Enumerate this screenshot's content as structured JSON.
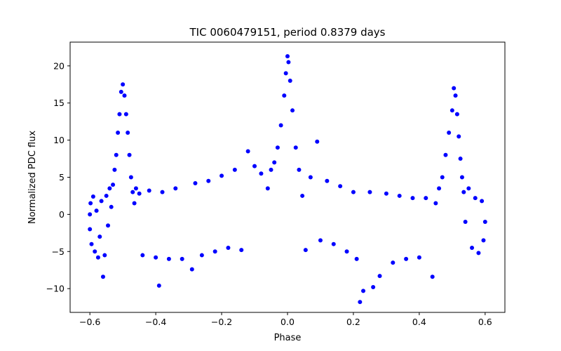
{
  "chart_data": {
    "type": "scatter",
    "title": "TIC 0060479151, period 0.8379 days",
    "xlabel": "Phase",
    "ylabel": "Normalized PDC flux",
    "xlim": [
      -0.66,
      0.66
    ],
    "ylim": [
      -13.2,
      23.2
    ],
    "grid": false,
    "legend": "none",
    "color": "#0000ff",
    "marker": "filled-circle",
    "x_ticks": [
      -0.6,
      -0.4,
      -0.2,
      0.0,
      0.2,
      0.4,
      0.6
    ],
    "x_tick_labels": [
      "−0.6",
      "−0.4",
      "−0.2",
      "0.0",
      "0.2",
      "0.4",
      "0.6"
    ],
    "y_ticks": [
      -10,
      -5,
      0,
      5,
      10,
      15,
      20
    ],
    "y_tick_labels": [
      "−10",
      "−5",
      "0",
      "5",
      "10",
      "15",
      "20"
    ],
    "points": [
      [
        -0.6,
        -2.0
      ],
      [
        -0.6,
        0.0
      ],
      [
        -0.598,
        1.5
      ],
      [
        -0.595,
        -4.0
      ],
      [
        -0.59,
        2.4
      ],
      [
        -0.585,
        -5.0
      ],
      [
        -0.58,
        0.5
      ],
      [
        -0.575,
        -5.8
      ],
      [
        -0.57,
        -3.0
      ],
      [
        -0.565,
        1.8
      ],
      [
        -0.56,
        -8.4
      ],
      [
        -0.555,
        -5.5
      ],
      [
        -0.55,
        2.5
      ],
      [
        -0.545,
        -1.5
      ],
      [
        -0.54,
        3.5
      ],
      [
        -0.535,
        1.0
      ],
      [
        -0.53,
        4.0
      ],
      [
        -0.525,
        6.0
      ],
      [
        -0.52,
        8.0
      ],
      [
        -0.515,
        11.0
      ],
      [
        -0.51,
        13.5
      ],
      [
        -0.505,
        16.5
      ],
      [
        -0.5,
        17.5
      ],
      [
        -0.495,
        16.0
      ],
      [
        -0.49,
        13.5
      ],
      [
        -0.485,
        11.0
      ],
      [
        -0.48,
        8.0
      ],
      [
        -0.475,
        5.0
      ],
      [
        -0.47,
        3.0
      ],
      [
        -0.465,
        1.5
      ],
      [
        -0.46,
        3.5
      ],
      [
        -0.45,
        2.8
      ],
      [
        -0.44,
        -5.5
      ],
      [
        -0.42,
        3.2
      ],
      [
        -0.4,
        -5.8
      ],
      [
        -0.39,
        -9.6
      ],
      [
        -0.38,
        3.0
      ],
      [
        -0.36,
        -6.0
      ],
      [
        -0.34,
        3.5
      ],
      [
        -0.32,
        -6.0
      ],
      [
        -0.29,
        -7.4
      ],
      [
        -0.28,
        4.2
      ],
      [
        -0.26,
        -5.5
      ],
      [
        -0.24,
        4.5
      ],
      [
        -0.22,
        -5.0
      ],
      [
        -0.2,
        5.2
      ],
      [
        -0.18,
        -4.5
      ],
      [
        -0.16,
        6.0
      ],
      [
        -0.14,
        -4.8
      ],
      [
        -0.12,
        8.5
      ],
      [
        -0.1,
        6.5
      ],
      [
        -0.08,
        5.5
      ],
      [
        -0.06,
        3.5
      ],
      [
        -0.05,
        6.0
      ],
      [
        -0.04,
        7.0
      ],
      [
        -0.03,
        9.0
      ],
      [
        -0.02,
        12.0
      ],
      [
        -0.01,
        16.0
      ],
      [
        -0.005,
        19.0
      ],
      [
        0.0,
        21.3
      ],
      [
        0.003,
        20.5
      ],
      [
        0.008,
        18.0
      ],
      [
        0.015,
        14.0
      ],
      [
        0.025,
        9.0
      ],
      [
        0.035,
        6.0
      ],
      [
        0.045,
        2.5
      ],
      [
        0.055,
        -4.8
      ],
      [
        0.07,
        5.0
      ],
      [
        0.09,
        9.8
      ],
      [
        0.1,
        -3.5
      ],
      [
        0.12,
        4.5
      ],
      [
        0.14,
        -4.0
      ],
      [
        0.16,
        3.8
      ],
      [
        0.18,
        -5.0
      ],
      [
        0.2,
        3.0
      ],
      [
        0.21,
        -6.0
      ],
      [
        0.22,
        -11.8
      ],
      [
        0.23,
        -10.3
      ],
      [
        0.25,
        3.0
      ],
      [
        0.26,
        -9.8
      ],
      [
        0.28,
        -8.3
      ],
      [
        0.3,
        2.8
      ],
      [
        0.32,
        -6.5
      ],
      [
        0.34,
        2.5
      ],
      [
        0.36,
        -6.0
      ],
      [
        0.38,
        2.2
      ],
      [
        0.4,
        -5.8
      ],
      [
        0.42,
        2.2
      ],
      [
        0.44,
        -8.4
      ],
      [
        0.45,
        1.5
      ],
      [
        0.46,
        3.5
      ],
      [
        0.47,
        5.0
      ],
      [
        0.48,
        8.0
      ],
      [
        0.49,
        11.0
      ],
      [
        0.5,
        14.0
      ],
      [
        0.505,
        17.0
      ],
      [
        0.51,
        16.0
      ],
      [
        0.515,
        13.5
      ],
      [
        0.52,
        10.5
      ],
      [
        0.525,
        7.5
      ],
      [
        0.53,
        5.0
      ],
      [
        0.535,
        3.0
      ],
      [
        0.54,
        -1.0
      ],
      [
        0.55,
        3.5
      ],
      [
        0.56,
        -4.5
      ],
      [
        0.57,
        2.2
      ],
      [
        0.58,
        -5.2
      ],
      [
        0.59,
        1.8
      ],
      [
        0.595,
        -3.5
      ],
      [
        0.6,
        -1.0
      ]
    ]
  }
}
